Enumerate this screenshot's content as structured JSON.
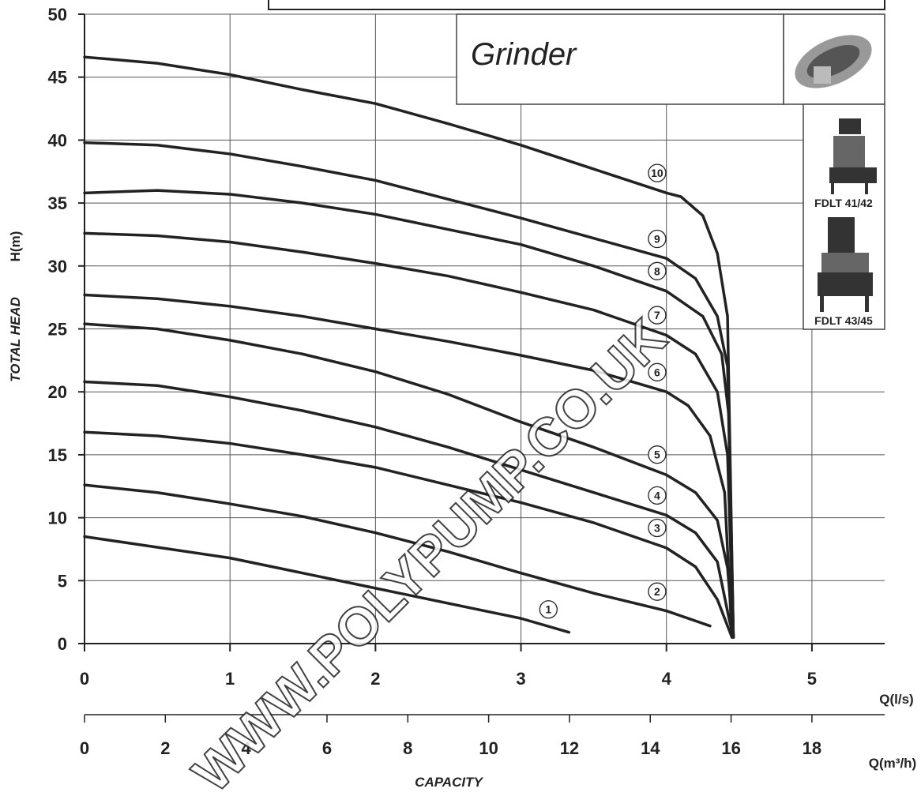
{
  "chart_data": {
    "type": "line",
    "title": "Grinder",
    "models": [
      "FDLT 41/42",
      "FDLT 43/45"
    ],
    "ylabel": "TOTAL HEAD",
    "yunit": "H(m)",
    "xlabel": "CAPACITY",
    "xunit": "Q(l/s)",
    "x2unit": "Q(m³/h)",
    "watermark": "WWW.POLYPUMP.CO.UK",
    "xlim": [
      0,
      5.5
    ],
    "xticks": [
      0,
      1,
      2,
      3,
      4,
      5
    ],
    "x2lim": [
      0,
      19.8
    ],
    "x2ticks": [
      0,
      2,
      4,
      6,
      8,
      10,
      12,
      14,
      16,
      18
    ],
    "ylim": [
      0,
      50
    ],
    "yticks": [
      0,
      5,
      10,
      15,
      20,
      25,
      30,
      35,
      40,
      45,
      50
    ],
    "grid": true,
    "color": "#222222",
    "series": [
      {
        "name": "1",
        "x": [
          0,
          1,
          2,
          3,
          3.33
        ],
        "values": [
          8.5,
          6.8,
          4.4,
          2.0,
          0.9
        ]
      },
      {
        "name": "2",
        "x": [
          0,
          0.5,
          1,
          1.5,
          2,
          2.5,
          3,
          3.5,
          4,
          4.3
        ],
        "values": [
          12.6,
          12.0,
          11.1,
          10.1,
          8.8,
          7.3,
          5.6,
          4.0,
          2.6,
          1.4
        ]
      },
      {
        "name": "3",
        "x": [
          0,
          0.5,
          1,
          1.5,
          2,
          2.5,
          3,
          3.5,
          4,
          4.2,
          4.35,
          4.45
        ],
        "values": [
          16.8,
          16.5,
          15.9,
          15.0,
          14.0,
          12.6,
          11.2,
          9.6,
          7.6,
          6.1,
          3.5,
          0.5
        ]
      },
      {
        "name": "4",
        "x": [
          0,
          0.5,
          1,
          1.5,
          2,
          2.5,
          3,
          3.5,
          4,
          4.2,
          4.35,
          4.43,
          4.46
        ],
        "values": [
          20.8,
          20.5,
          19.6,
          18.5,
          17.2,
          15.6,
          13.8,
          12.0,
          10.2,
          8.8,
          6.5,
          2,
          0.5
        ]
      },
      {
        "name": "5",
        "x": [
          0,
          0.5,
          1,
          1.5,
          2,
          2.5,
          3,
          3.5,
          4,
          4.2,
          4.35,
          4.42,
          4.46
        ],
        "values": [
          25.4,
          25.0,
          24.1,
          23.0,
          21.6,
          19.8,
          17.6,
          15.6,
          13.4,
          12.0,
          9.8,
          6,
          0.5
        ]
      },
      {
        "name": "6",
        "x": [
          0,
          0.5,
          1,
          1.5,
          2,
          2.5,
          3,
          3.5,
          4,
          4.15,
          4.3,
          4.4,
          4.45
        ],
        "values": [
          27.7,
          27.4,
          26.8,
          26.0,
          25.0,
          24.0,
          22.9,
          21.7,
          20.0,
          18.9,
          16.5,
          12,
          0.5
        ]
      },
      {
        "name": "7",
        "x": [
          0,
          0.5,
          1,
          1.5,
          2,
          2.5,
          3,
          3.5,
          4,
          4.2,
          4.35,
          4.42,
          4.46
        ],
        "values": [
          32.6,
          32.4,
          31.9,
          31.1,
          30.2,
          29.2,
          27.9,
          26.5,
          24.5,
          23.0,
          20,
          15,
          0.5
        ]
      },
      {
        "name": "8",
        "x": [
          0,
          0.5,
          1,
          1.5,
          2,
          2.5,
          3,
          3.5,
          4,
          4.25,
          4.38,
          4.43,
          4.46
        ],
        "values": [
          35.8,
          36.0,
          35.7,
          35.0,
          34.1,
          32.9,
          31.7,
          30.0,
          28.0,
          26.0,
          23,
          18,
          0.5
        ]
      },
      {
        "name": "9",
        "x": [
          0,
          0.5,
          1,
          1.5,
          2,
          2.5,
          3,
          3.5,
          4,
          4.2,
          4.35,
          4.42,
          4.46
        ],
        "values": [
          39.8,
          39.6,
          38.9,
          37.9,
          36.8,
          35.3,
          33.8,
          32.2,
          30.6,
          29.0,
          26,
          22,
          0.5
        ]
      },
      {
        "name": "10",
        "x": [
          0,
          0.5,
          1,
          1.5,
          2,
          2.5,
          3,
          3.5,
          4,
          4.1,
          4.25,
          4.35,
          4.42,
          4.46
        ],
        "values": [
          46.6,
          46.1,
          45.2,
          44.0,
          42.9,
          41.3,
          39.6,
          37.7,
          35.8,
          35.5,
          34,
          31,
          26,
          0.5
        ]
      }
    ]
  }
}
